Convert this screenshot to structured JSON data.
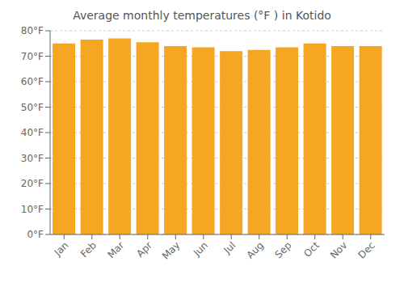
{
  "chart_data": {
    "type": "bar",
    "title": "Average monthly temperatures (°F ) in Kotido",
    "categories": [
      "Jan",
      "Feb",
      "Mar",
      "Apr",
      "May",
      "Jun",
      "Jul",
      "Aug",
      "Sep",
      "Oct",
      "Nov",
      "Dec"
    ],
    "values": [
      75.0,
      76.5,
      77.0,
      75.5,
      74.0,
      73.5,
      72.0,
      72.5,
      73.5,
      75.0,
      74.0,
      74.0
    ],
    "color": "#F5A623",
    "ylim": [
      0,
      80
    ],
    "yticks": [
      {
        "value": 0,
        "label": "0°F"
      },
      {
        "value": 10,
        "label": "10°F"
      },
      {
        "value": 20,
        "label": "20°F"
      },
      {
        "value": 30,
        "label": "30°F"
      },
      {
        "value": 40,
        "label": "40°F"
      },
      {
        "value": 50,
        "label": "50°F"
      },
      {
        "value": 60,
        "label": "60°F"
      },
      {
        "value": 70,
        "label": "70°F"
      },
      {
        "value": 80,
        "label": "80°F"
      }
    ],
    "grid": true
  }
}
